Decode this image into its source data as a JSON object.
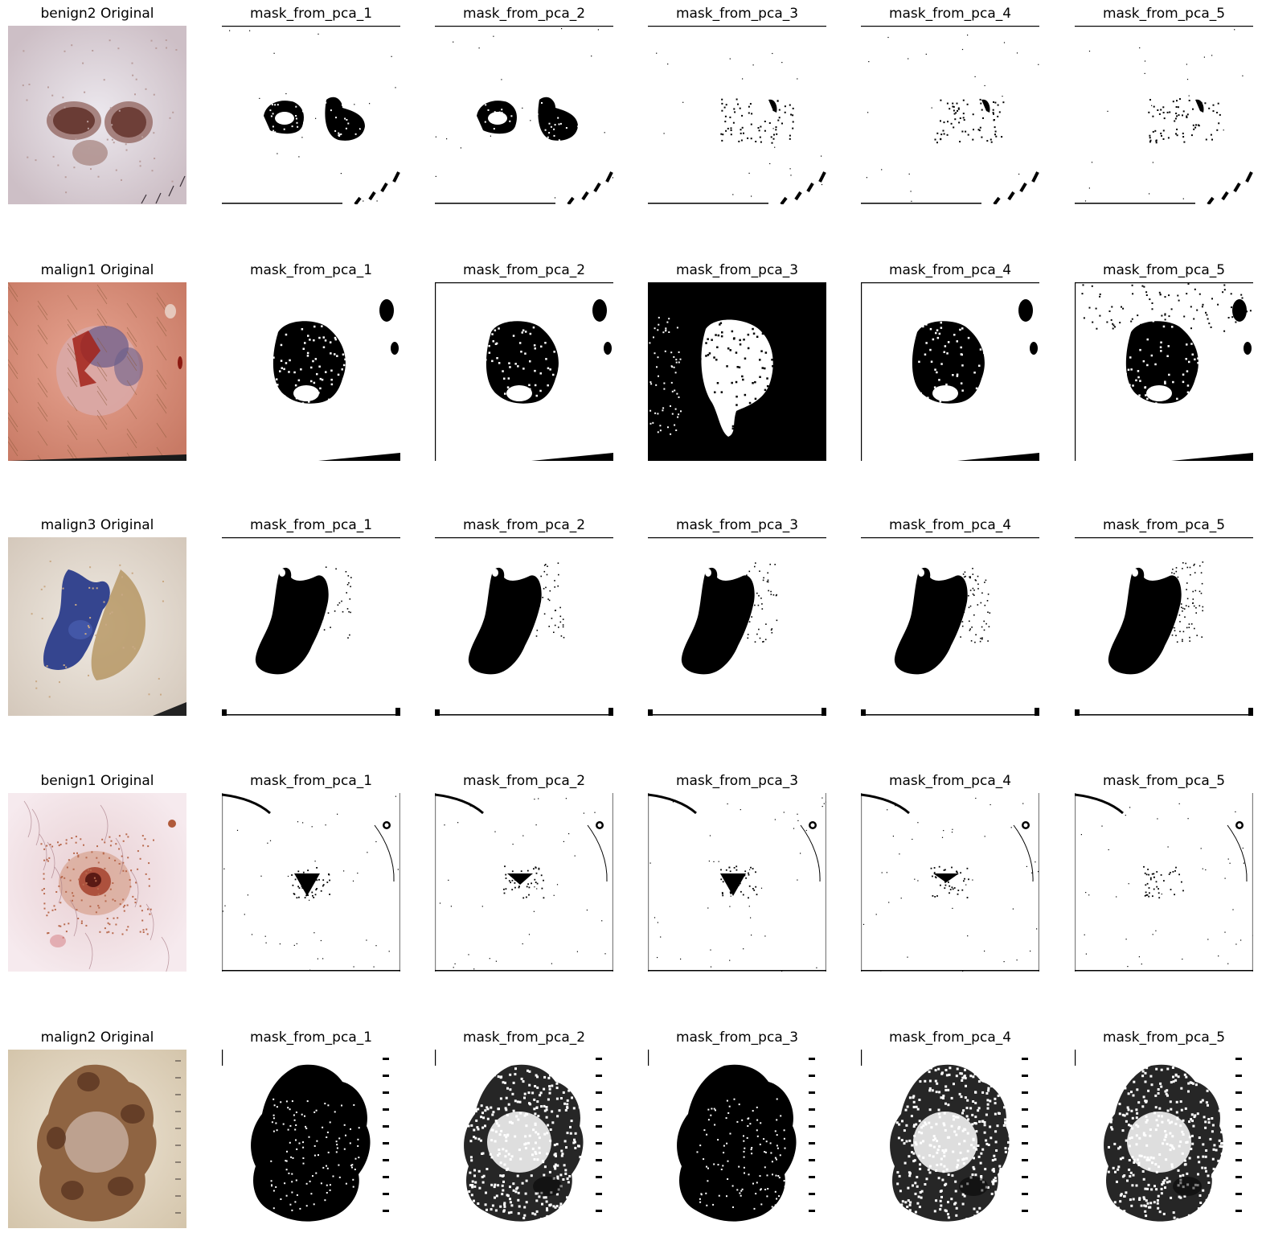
{
  "figure": {
    "rows": [
      {
        "sample": "benign2",
        "original_title": "benign2 Original",
        "original_kind": "benign2",
        "mask_titles": [
          "mask_from_pca_1",
          "mask_from_pca_2",
          "mask_from_pca_3",
          "mask_from_pca_4",
          "mask_from_pca_5"
        ],
        "mask_kinds": [
          "b2m1",
          "b2m2",
          "b2m3",
          "b2m4",
          "b2m5"
        ]
      },
      {
        "sample": "malign1",
        "original_title": "malign1 Original",
        "original_kind": "malign1",
        "mask_titles": [
          "mask_from_pca_1",
          "mask_from_pca_2",
          "mask_from_pca_3",
          "mask_from_pca_4",
          "mask_from_pca_5"
        ],
        "mask_kinds": [
          "m1m1",
          "m1m2",
          "m1m3",
          "m1m4",
          "m1m5"
        ]
      },
      {
        "sample": "malign3",
        "original_title": "malign3 Original",
        "original_kind": "malign3",
        "mask_titles": [
          "mask_from_pca_1",
          "mask_from_pca_2",
          "mask_from_pca_3",
          "mask_from_pca_4",
          "mask_from_pca_5"
        ],
        "mask_kinds": [
          "m3m1",
          "m3m2",
          "m3m3",
          "m3m4",
          "m3m5"
        ]
      },
      {
        "sample": "benign1",
        "original_title": "benign1 Original",
        "original_kind": "benign1",
        "mask_titles": [
          "mask_from_pca_1",
          "mask_from_pca_2",
          "mask_from_pca_3",
          "mask_from_pca_4",
          "mask_from_pca_5"
        ],
        "mask_kinds": [
          "b1m1",
          "b1m2",
          "b1m3",
          "b1m4",
          "b1m5"
        ]
      },
      {
        "sample": "malign2",
        "original_title": "malign2 Original",
        "original_kind": "malign2",
        "mask_titles": [
          "mask_from_pca_1",
          "mask_from_pca_2",
          "mask_from_pca_3",
          "mask_from_pca_4",
          "mask_from_pca_5"
        ],
        "mask_kinds": [
          "m2m1",
          "m2m2",
          "m2m3",
          "m2m4",
          "m2m5"
        ]
      }
    ]
  }
}
